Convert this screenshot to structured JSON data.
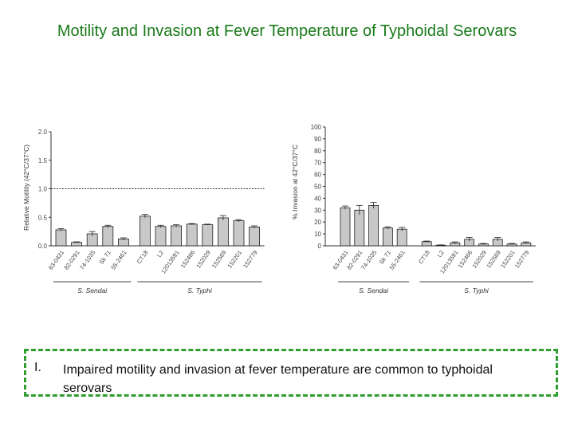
{
  "slide": {
    "title": "Motility and Invasion at Fever Temperature of Typhoidal Serovars",
    "caption_number": "I.",
    "caption_text": "Impaired motility and invasion at fever temperature are common to typhoidal serovars",
    "accent_color": "#2e9e2e",
    "title_color": "#1a7a1a"
  },
  "chart_data": [
    {
      "type": "bar",
      "ylabel": "Relative Motility (42°C/37°C)",
      "ylim": [
        0,
        2.0
      ],
      "yticks": [
        "0.0",
        "0.5",
        "1.0",
        "1.5",
        "2.0"
      ],
      "ytick_values": [
        0,
        0.5,
        1.0,
        1.5,
        2.0
      ],
      "reference_line": 1.0,
      "categories": [
        "63-0431",
        "82-0291",
        "74-1035",
        "Sk 71",
        "55-2461",
        "CT18",
        "L2",
        "12013591",
        "152466",
        "152029",
        "152569",
        "152201",
        "152779"
      ],
      "values": [
        0.28,
        0.06,
        0.21,
        0.34,
        0.12,
        0.52,
        0.34,
        0.35,
        0.38,
        0.37,
        0.49,
        0.44,
        0.33
      ],
      "errors": [
        0.02,
        0.01,
        0.04,
        0.02,
        0.02,
        0.03,
        0.02,
        0.02,
        0.01,
        0.01,
        0.04,
        0.02,
        0.02
      ],
      "groups": [
        {
          "label": "S. Sendai",
          "count": 5
        },
        {
          "label": "S. Typhi",
          "count": 8
        }
      ]
    },
    {
      "type": "bar",
      "ylabel": "% Invasion at 42°C/37°C",
      "ylim": [
        0,
        100
      ],
      "yticks": [
        "0",
        "10",
        "20",
        "30",
        "40",
        "50",
        "60",
        "70",
        "80",
        "90",
        "100"
      ],
      "ytick_values": [
        0,
        10,
        20,
        30,
        40,
        50,
        60,
        70,
        80,
        90,
        100
      ],
      "categories": [
        "63-0431",
        "82-0291",
        "74-1035",
        "Sk 71",
        "55-2461",
        "CT18",
        "L2",
        "12013591",
        "152466",
        "152029",
        "152569",
        "152201",
        "152779"
      ],
      "values": [
        32,
        30,
        34,
        15,
        14,
        3.5,
        0.5,
        2.5,
        5.5,
        1.5,
        5.5,
        1.5,
        2.5
      ],
      "errors": [
        1.5,
        4.0,
        2.5,
        1.0,
        1.5,
        0.5,
        0.3,
        0.8,
        1.5,
        0.5,
        1.5,
        0.5,
        0.8
      ],
      "groups": [
        {
          "label": "S. Sendai",
          "count": 5
        },
        {
          "label": "S. Typhi",
          "count": 8
        }
      ]
    }
  ]
}
